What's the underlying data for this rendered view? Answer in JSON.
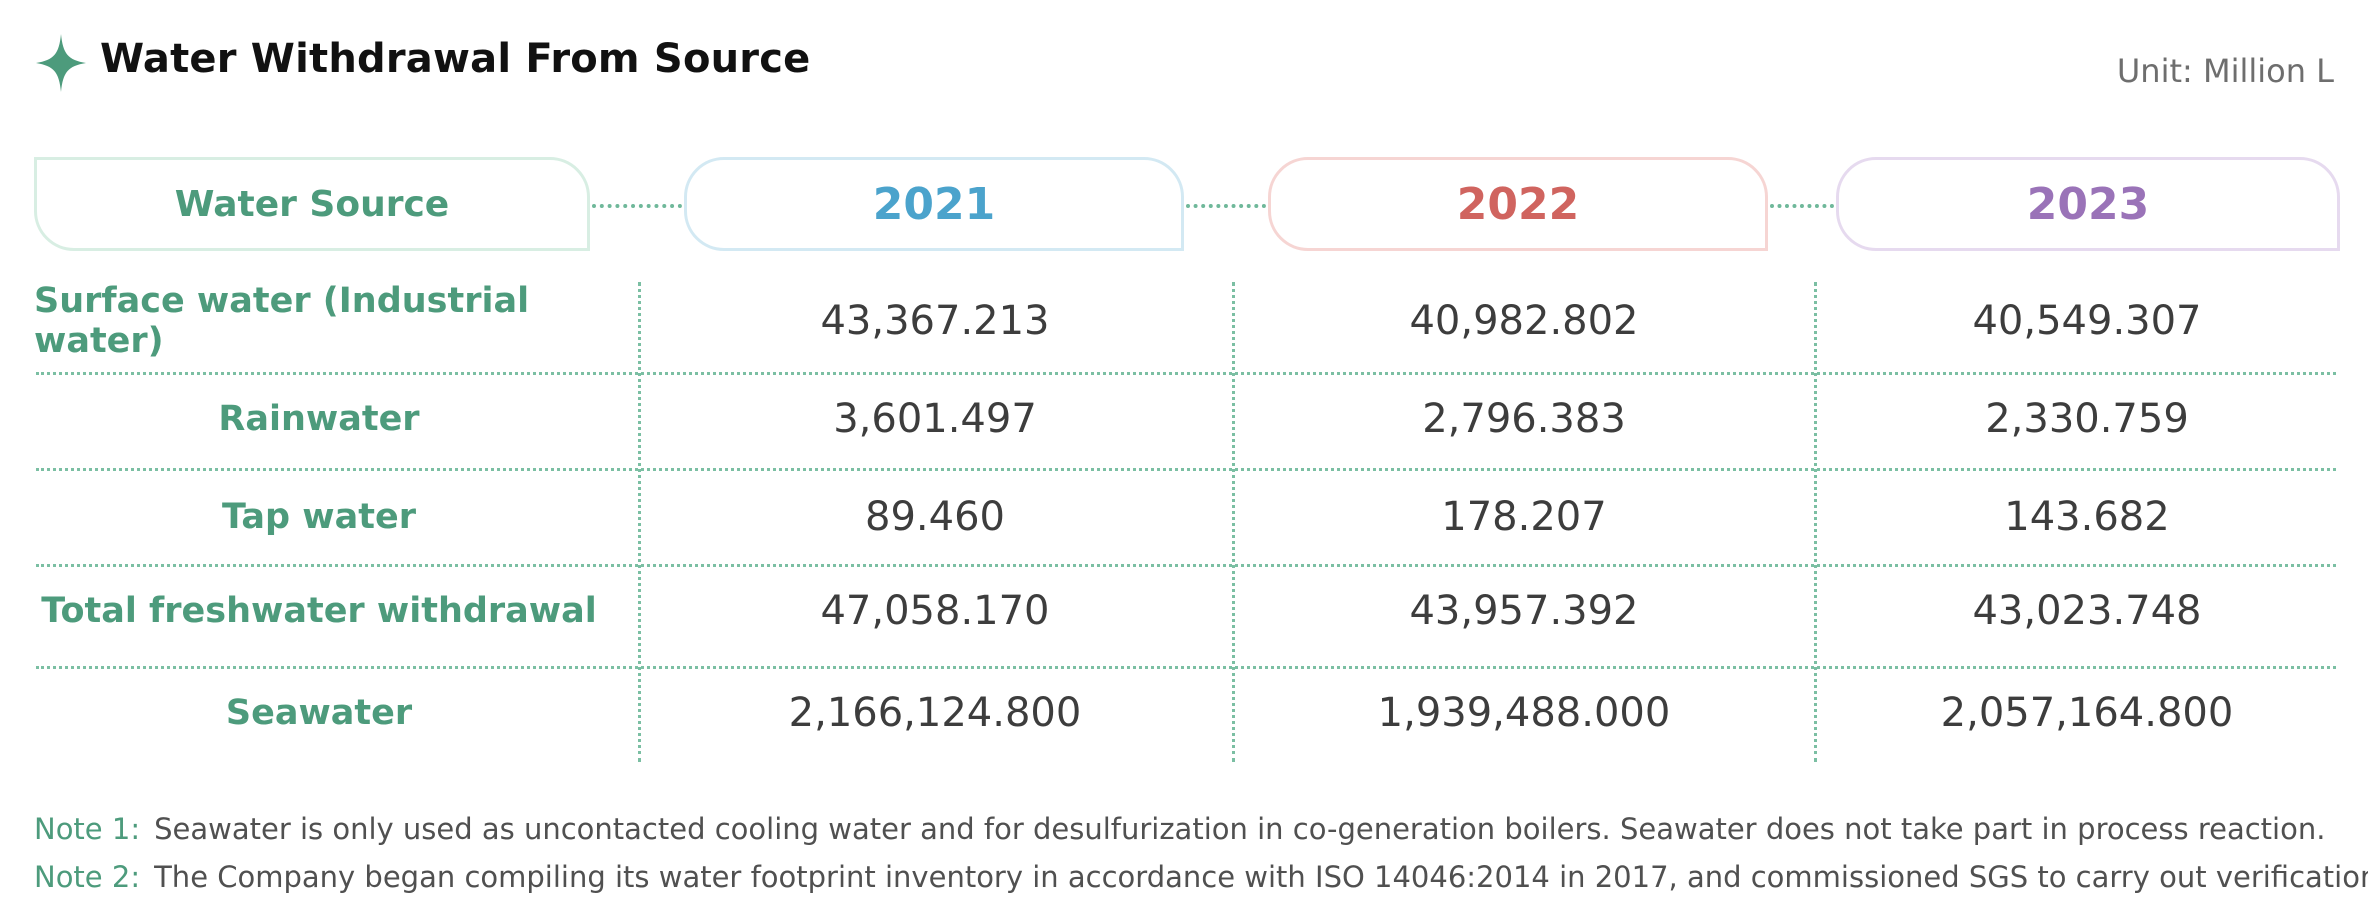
{
  "header": {
    "title": "Water Withdrawal From Source",
    "unit": "Unit: Million L",
    "icon": "sparkle-icon",
    "accent_color": "#4d9b7c"
  },
  "columns": {
    "source": "Water Source",
    "y1": "2021",
    "y2": "2022",
    "y3": "2023"
  },
  "column_colors": {
    "y1": "#4ba3cc",
    "y2": "#d0645f",
    "y3": "#9a73b8"
  },
  "rows": [
    {
      "label": "Surface water (Industrial water)",
      "y1": "43,367.213",
      "y2": "40,982.802",
      "y3": "40,549.307"
    },
    {
      "label": "Rainwater",
      "y1": "3,601.497",
      "y2": "2,796.383",
      "y3": "2,330.759"
    },
    {
      "label": "Tap water",
      "y1": "89.460",
      "y2": "178.207",
      "y3": "143.682"
    },
    {
      "label": "Total freshwater withdrawal",
      "y1": "47,058.170",
      "y2": "43,957.392",
      "y3": "43,023.748"
    },
    {
      "label": "Seawater",
      "y1": "2,166,124.800",
      "y2": "1,939,488.000",
      "y3": "2,057,164.800"
    }
  ],
  "notes": [
    {
      "label": "Note 1:",
      "text": "Seawater is only used as uncontacted cooling water and for desulfurization in co-generation boilers. Seawater does not take part in process reaction."
    },
    {
      "label": "Note 2:",
      "text": "The Company began compiling its water footprint inventory in accordance with ISO 14046:2014 in 2017, and commissioned SGS to carry out verification."
    }
  ]
}
